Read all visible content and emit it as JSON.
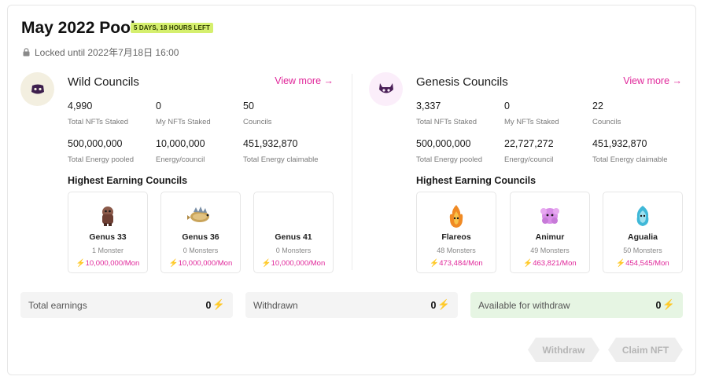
{
  "pool": {
    "title": "May 2022 Pool",
    "badge": "5 DAYS, 18 HOURS LEFT",
    "locked_text": "Locked until 2022年7月18日 16:00"
  },
  "wild": {
    "title": "Wild Councils",
    "view_more": "View more →",
    "stats": [
      {
        "value": "4,990",
        "label": "Total NFTs Staked"
      },
      {
        "value": "0",
        "label": "My NFTs Staked"
      },
      {
        "value": "50",
        "label": "Councils"
      },
      {
        "value": "500,000,000",
        "label": "Total Energy pooled"
      },
      {
        "value": "10,000,000",
        "label": "Energy/council"
      },
      {
        "value": "451,932,870",
        "label": "Total Energy claimable"
      }
    ],
    "highest_title": "Highest Earning Councils",
    "councils": [
      {
        "name": "Genus 33",
        "count": "1 Monster",
        "rate": "10,000,000/Mon"
      },
      {
        "name": "Genus 36",
        "count": "0 Monsters",
        "rate": "10,000,000/Mon"
      },
      {
        "name": "Genus 41",
        "count": "0 Monsters",
        "rate": "10,000,000/Mon"
      }
    ]
  },
  "genesis": {
    "title": "Genesis Councils",
    "view_more": "View more →",
    "stats": [
      {
        "value": "3,337",
        "label": "Total NFTs Staked"
      },
      {
        "value": "0",
        "label": "My NFTs Staked"
      },
      {
        "value": "22",
        "label": "Councils"
      },
      {
        "value": "500,000,000",
        "label": "Total Energy pooled"
      },
      {
        "value": "22,727,272",
        "label": "Energy/council"
      },
      {
        "value": "451,932,870",
        "label": "Total Energy claimable"
      }
    ],
    "highest_title": "Highest Earning Councils",
    "councils": [
      {
        "name": "Flareos",
        "count": "48 Monsters",
        "rate": "473,484/Mon"
      },
      {
        "name": "Animur",
        "count": "49 Monsters",
        "rate": "463,821/Mon"
      },
      {
        "name": "Agualia",
        "count": "50 Monsters",
        "rate": "454,545/Mon"
      }
    ]
  },
  "summary": {
    "total_earnings_label": "Total earnings",
    "total_earnings_value": "0",
    "withdrawn_label": "Withdrawn",
    "withdrawn_value": "0",
    "available_label": "Available for withdraw",
    "available_value": "0"
  },
  "actions": {
    "withdraw": "Withdraw",
    "claim": "Claim NFT"
  },
  "colors": {
    "accent": "#e0279a",
    "badge": "#d5ef6e",
    "available_bg": "#e6f5e3"
  }
}
